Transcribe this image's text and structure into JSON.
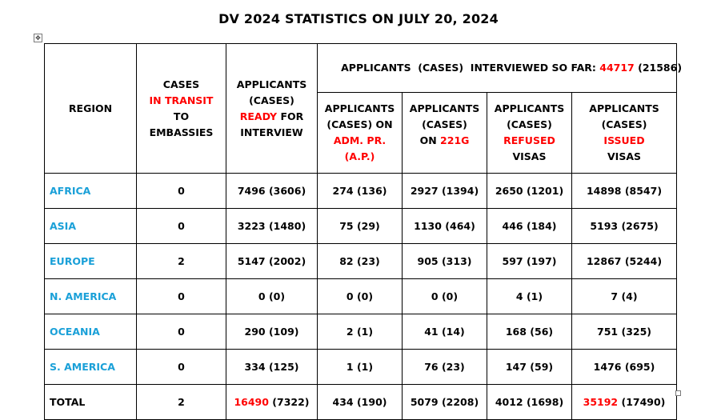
{
  "title": "DV 2024 STATISTICS ON JULY 20, 2024",
  "header": {
    "region": "REGION",
    "transit": {
      "l1": "CASES",
      "l2": "IN TRANSIT",
      "l3": "TO",
      "l4": "EMBASSIES"
    },
    "ready": {
      "l1": "APPLICANTS",
      "l2": "(CASES)",
      "l3_red": "READY",
      "l3_rest": " FOR",
      "l4": "INTERVIEW"
    },
    "interviewed": {
      "prefix": "APPLICANTS  (CASES)  INTERVIEWED SO FAR: ",
      "total_red": "44717",
      "total_rest": " (21586)"
    },
    "ap": {
      "l1": "APPLICANTS",
      "l2": "(CASES) ON",
      "l3": "ADM. PR.",
      "l4": "(A.P.)"
    },
    "g221": {
      "l1": "APPLICANTS",
      "l2": "(CASES)",
      "l3_pre": "ON ",
      "l3_red": "221G"
    },
    "refused": {
      "l1": "APPLICANTS",
      "l2": "(CASES)",
      "l3": "REFUSED",
      "l4": "VISAS"
    },
    "issued": {
      "l1": "APPLICANTS",
      "l2": "(CASES)",
      "l3": "ISSUED",
      "l4": "VISAS"
    }
  },
  "rows": [
    {
      "region": "AFRICA",
      "transit": "0",
      "ready": "7496 (3606)",
      "ap": "274 (136)",
      "g221": "2927 (1394)",
      "refused": "2650 (1201)",
      "issued": "14898 (8547)"
    },
    {
      "region": "ASIA",
      "transit": "0",
      "ready": "3223 (1480)",
      "ap": "75 (29)",
      "g221": "1130 (464)",
      "refused": "446 (184)",
      "issued": "5193 (2675)"
    },
    {
      "region": "EUROPE",
      "transit": "2",
      "ready": "5147 (2002)",
      "ap": "82 (23)",
      "g221": "905 (313)",
      "refused": "597 (197)",
      "issued": "12867 (5244)"
    },
    {
      "region": "N. AMERICA",
      "transit": "0",
      "ready": "0 (0)",
      "ap": "0 (0)",
      "g221": "0 (0)",
      "refused": "4 (1)",
      "issued": "7 (4)"
    },
    {
      "region": "OCEANIA",
      "transit": "0",
      "ready": "290 (109)",
      "ap": "2 (1)",
      "g221": "41 (14)",
      "refused": "168 (56)",
      "issued": "751 (325)"
    },
    {
      "region": "S. AMERICA",
      "transit": "0",
      "ready": "334 (125)",
      "ap": "1 (1)",
      "g221": "76 (23)",
      "refused": "147 (59)",
      "issued": "1476 (695)"
    }
  ],
  "total": {
    "label": "TOTAL",
    "transit": "2",
    "ready_red": "16490",
    "ready_rest": " (7322)",
    "ap": "434 (190)",
    "g221": "5079 (2208)",
    "refused": "4012 (1698)",
    "issued_red": "35192",
    "issued_rest": " (17490)"
  },
  "colors": {
    "accent_red": "#ff0000",
    "region_blue": "#1aa0d8"
  },
  "icons": {
    "table_anchor": "move-handle-icon",
    "table_resize": "resize-handle-icon"
  }
}
